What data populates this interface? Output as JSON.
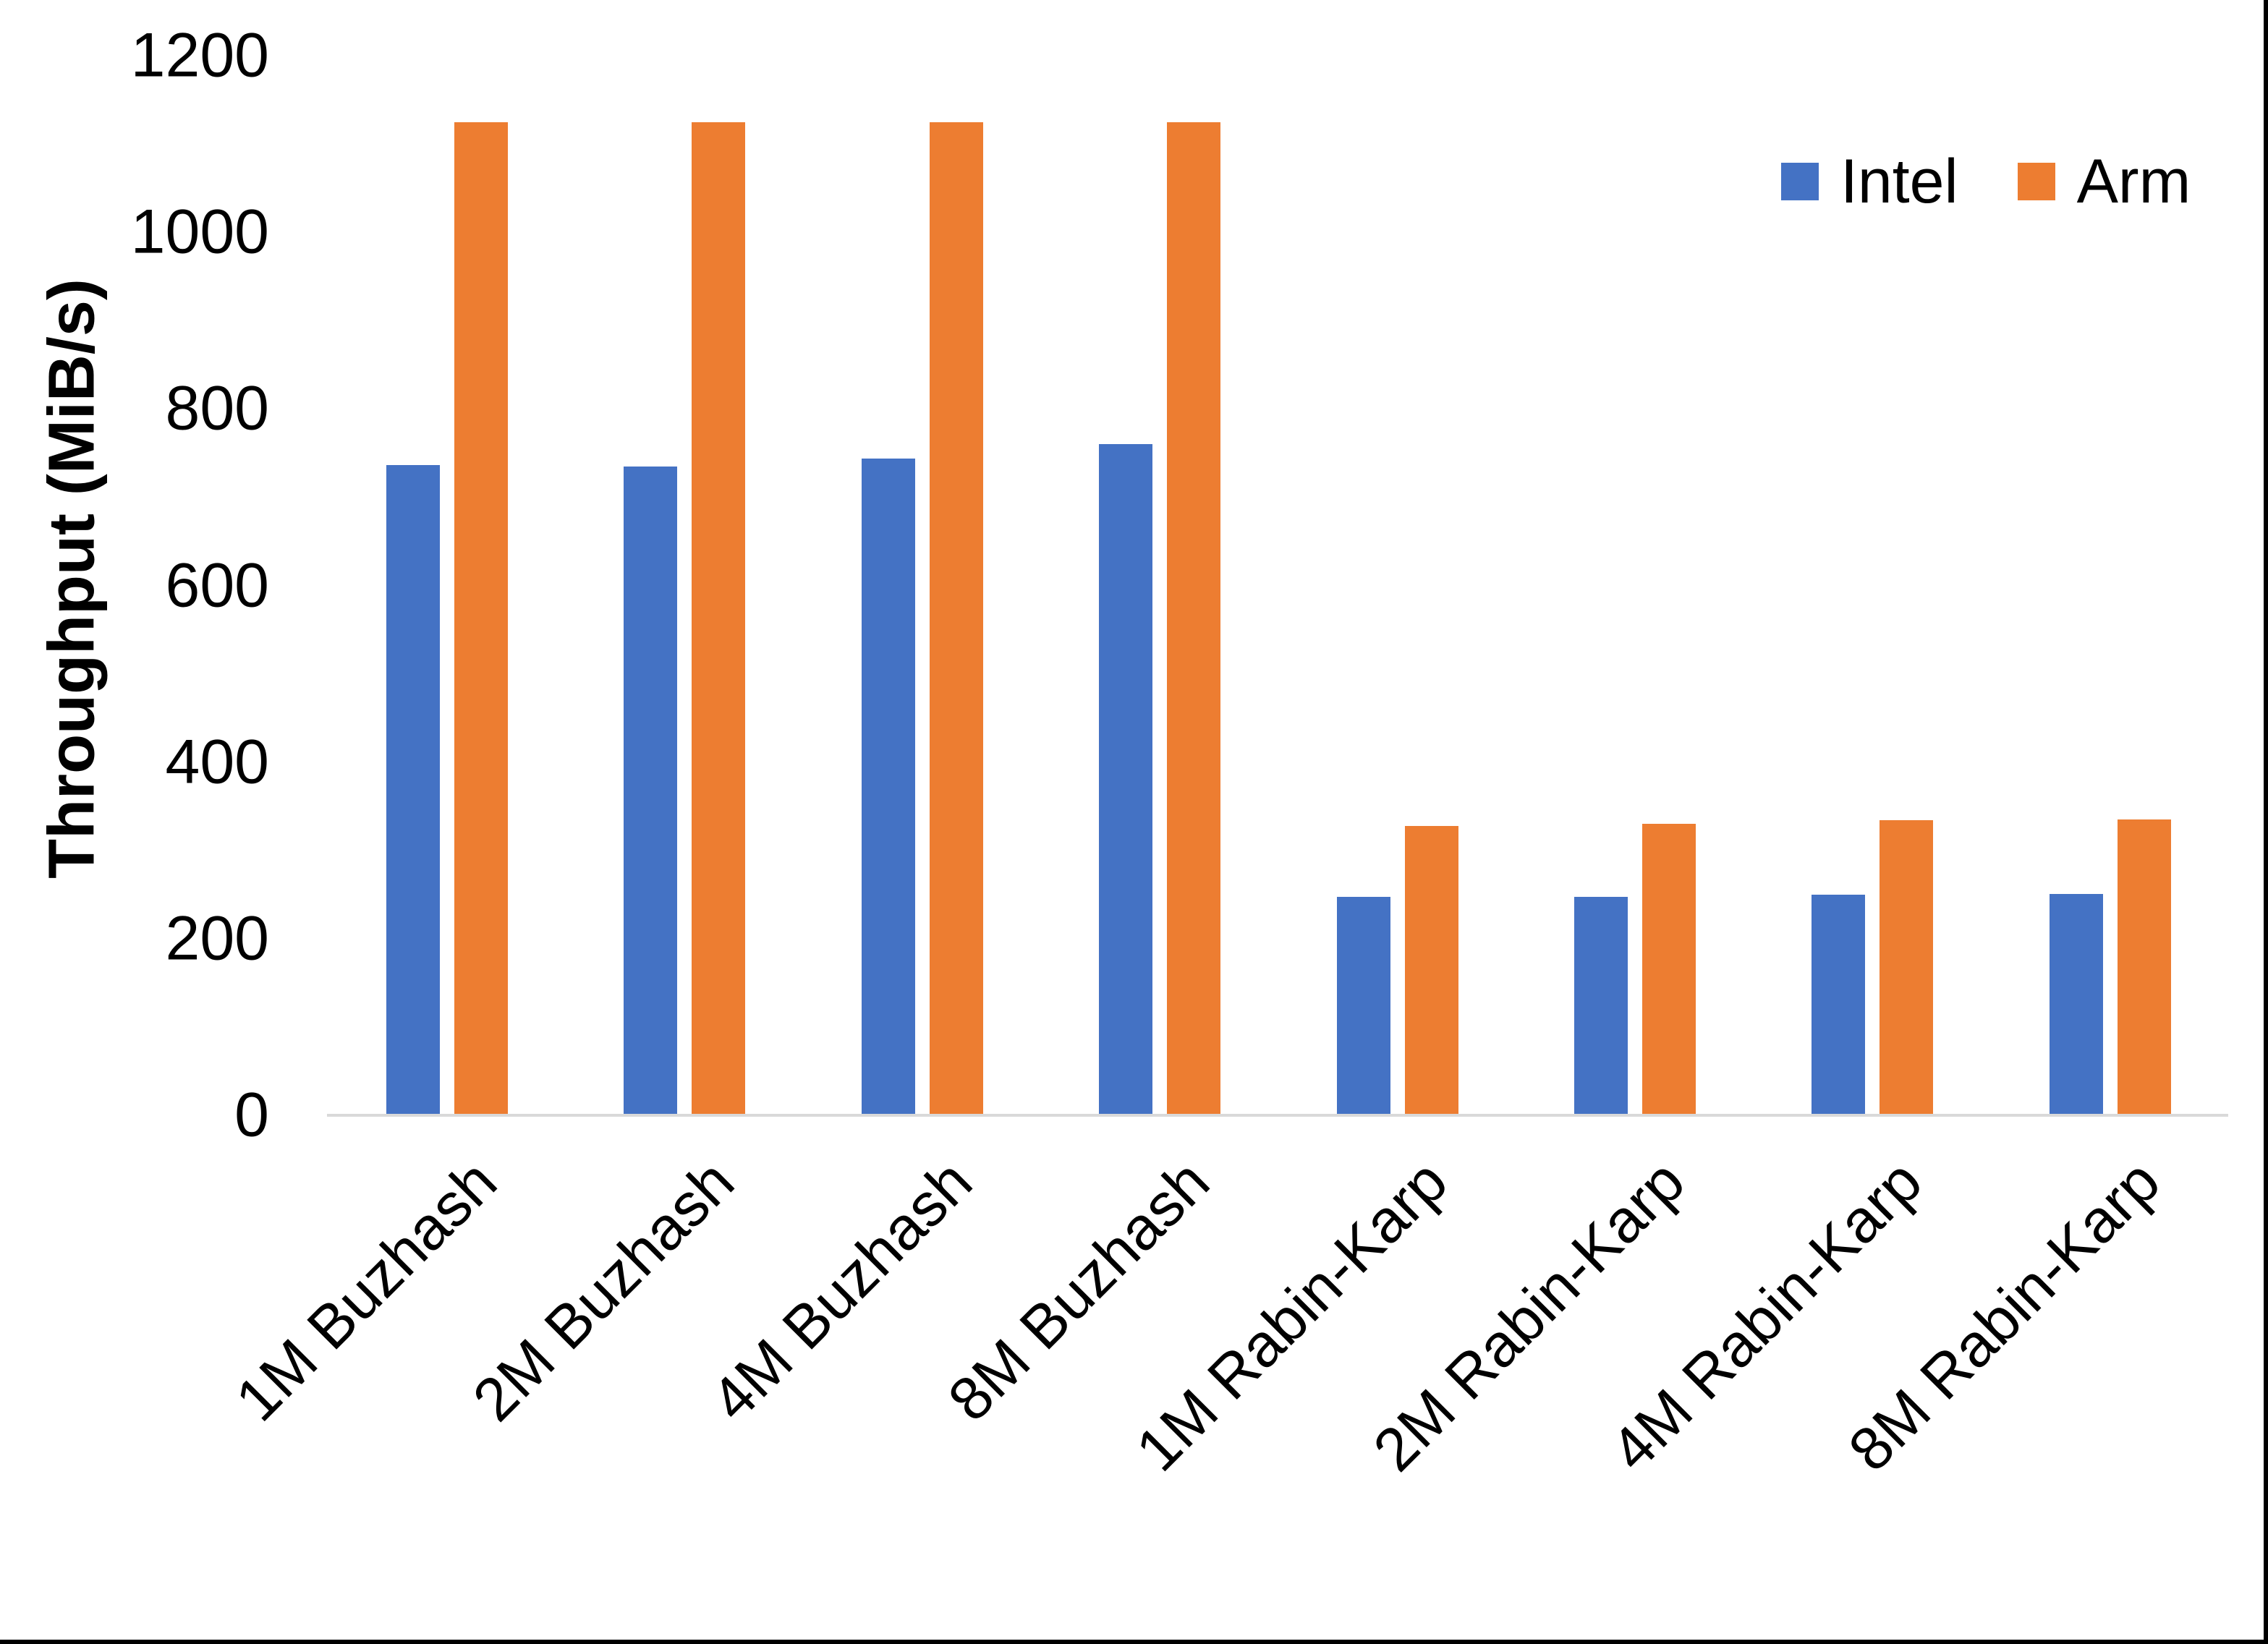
{
  "chart_data": {
    "type": "bar",
    "title": "",
    "categories": [
      "1M Buzhash",
      "2M Buzhash",
      "4M Buzhash",
      "8M Buzhash",
      "1M Rabin-Karp",
      "2M Rabin-Karp",
      "4M Rabin-Karp",
      "8M Rabin-Karp"
    ],
    "series": [
      {
        "name": "Intel",
        "color": "#4472C4",
        "values": [
          736,
          735,
          744,
          760,
          247,
          247,
          250,
          251
        ]
      },
      {
        "name": "Arm",
        "color": "#ED7D31",
        "values": [
          1125,
          1125,
          1125,
          1125,
          328,
          330,
          334,
          335
        ]
      }
    ],
    "xlabel": "",
    "ylabel": "Throughput (MiB/s)",
    "ylim": [
      0,
      1200
    ],
    "yticks": [
      0,
      200,
      400,
      600,
      800,
      1000,
      1200
    ],
    "grid": false,
    "legend_position": "top-right",
    "axis_line_color": "#d9d9d9",
    "text_color": "#000000"
  }
}
